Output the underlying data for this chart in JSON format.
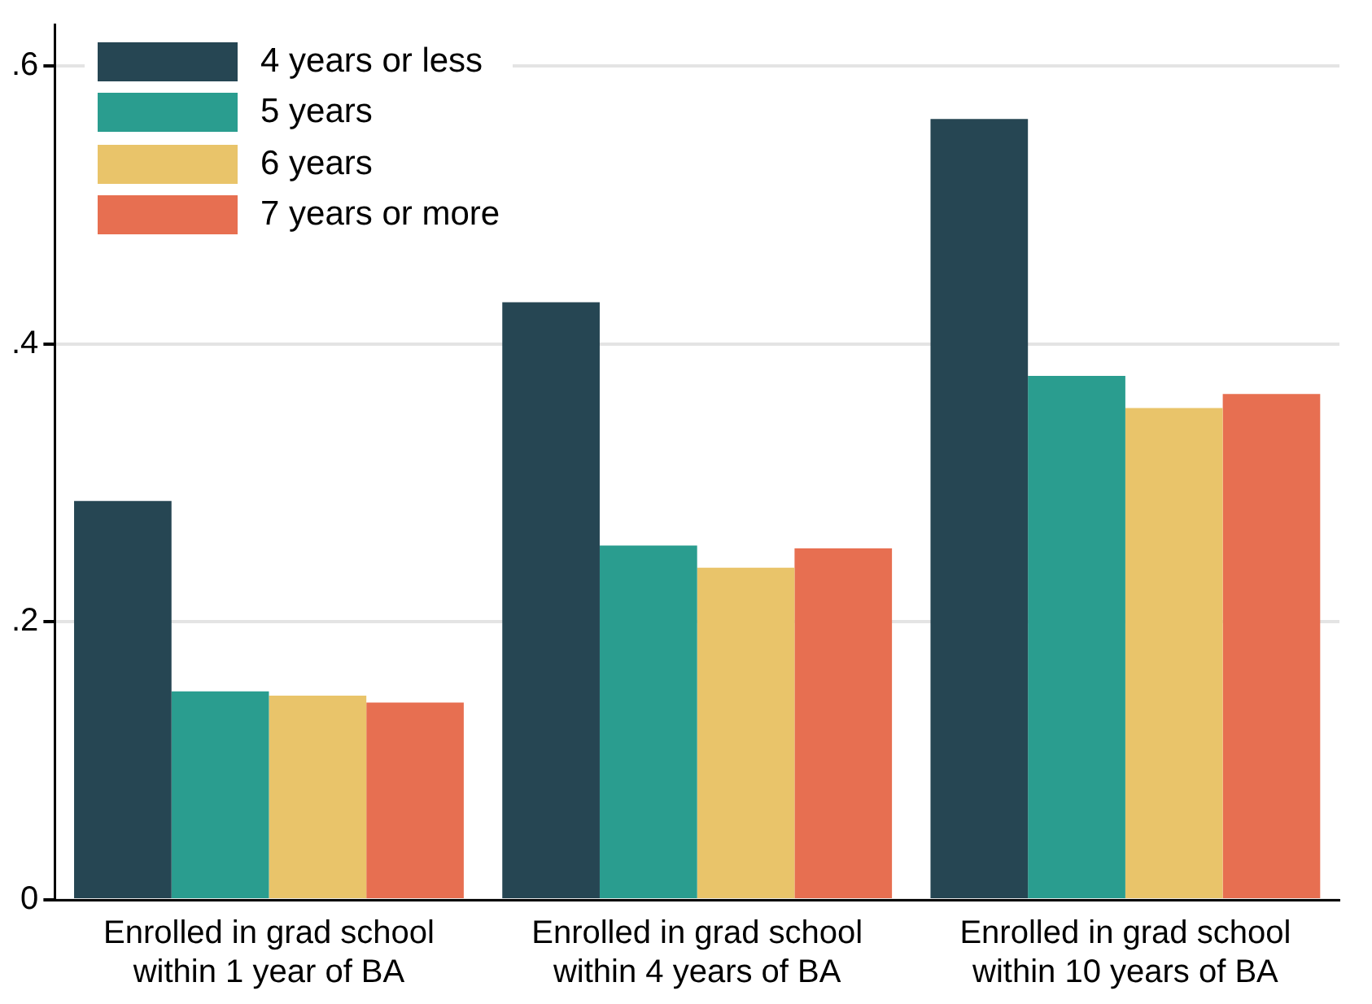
{
  "chart_data": {
    "type": "bar",
    "categories": [
      "Enrolled in grad school within 1 year of BA",
      "Enrolled in grad school within 4 years of BA",
      "Enrolled in grad school within 10 years of BA"
    ],
    "series": [
      {
        "name": "4 years or less",
        "color": "#264653",
        "values": [
          0.287,
          0.43,
          0.562
        ]
      },
      {
        "name": "5 years",
        "color": "#2a9d8f",
        "values": [
          0.15,
          0.255,
          0.377
        ]
      },
      {
        "name": "6 years",
        "color": "#e9c46a",
        "values": [
          0.147,
          0.239,
          0.354
        ]
      },
      {
        "name": "7 years or more",
        "color": "#e76f51",
        "values": [
          0.142,
          0.253,
          0.364
        ]
      }
    ],
    "ylim": [
      0,
      0.63
    ],
    "yticks": [
      {
        "value": 0,
        "label": "0"
      },
      {
        "value": 0.2,
        "label": ".2"
      },
      {
        "value": 0.4,
        "label": ".4"
      },
      {
        "value": 0.6,
        "label": ".6"
      }
    ],
    "grid": "y",
    "legend": "top left"
  }
}
